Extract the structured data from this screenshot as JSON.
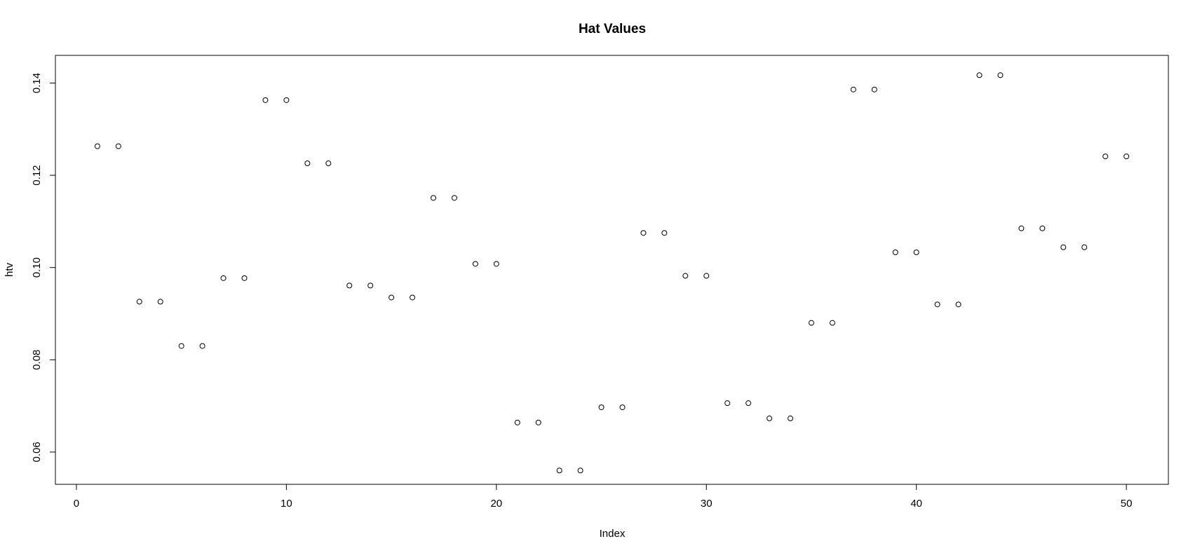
{
  "chart_data": {
    "type": "scatter",
    "title": "Hat Values",
    "xlabel": "Index",
    "ylabel": "htv",
    "xlim": [
      -1,
      52
    ],
    "ylim": [
      0.053,
      0.146
    ],
    "x_ticks": [
      0,
      10,
      20,
      30,
      40,
      50
    ],
    "y_ticks": [
      0.06,
      0.08,
      0.1,
      0.12,
      0.14
    ],
    "x_tick_labels": [
      "0",
      "10",
      "20",
      "30",
      "40",
      "50"
    ],
    "y_tick_labels": [
      "0.06",
      "0.08",
      "0.10",
      "0.12",
      "0.14"
    ],
    "grid": false,
    "legend": "none",
    "marker": "open-circle",
    "series": [
      {
        "x": [
          1,
          2,
          3,
          4,
          5,
          6,
          7,
          8,
          9,
          10,
          11,
          12,
          13,
          14,
          15,
          16,
          17,
          18,
          19,
          20,
          21,
          22,
          23,
          24,
          25,
          26,
          27,
          28,
          29,
          30,
          31,
          32,
          33,
          34,
          35,
          36,
          37,
          38,
          39,
          40,
          41,
          42,
          43,
          44,
          45,
          46,
          47,
          48,
          49,
          50
        ],
        "y": [
          0.1263,
          0.1263,
          0.0926,
          0.0926,
          0.083,
          0.083,
          0.0977,
          0.0977,
          0.1363,
          0.1363,
          0.1226,
          0.1226,
          0.0961,
          0.0961,
          0.0935,
          0.0935,
          0.1151,
          0.1151,
          0.1008,
          0.1008,
          0.0664,
          0.0664,
          0.056,
          0.056,
          0.0697,
          0.0697,
          0.1075,
          0.1075,
          0.0982,
          0.0982,
          0.0706,
          0.0706,
          0.0673,
          0.0673,
          0.088,
          0.088,
          0.1386,
          0.1386,
          0.1033,
          0.1033,
          0.092,
          0.092,
          0.1417,
          0.1417,
          0.1085,
          0.1085,
          0.1044,
          0.1044,
          0.1241,
          0.1241
        ]
      }
    ]
  }
}
